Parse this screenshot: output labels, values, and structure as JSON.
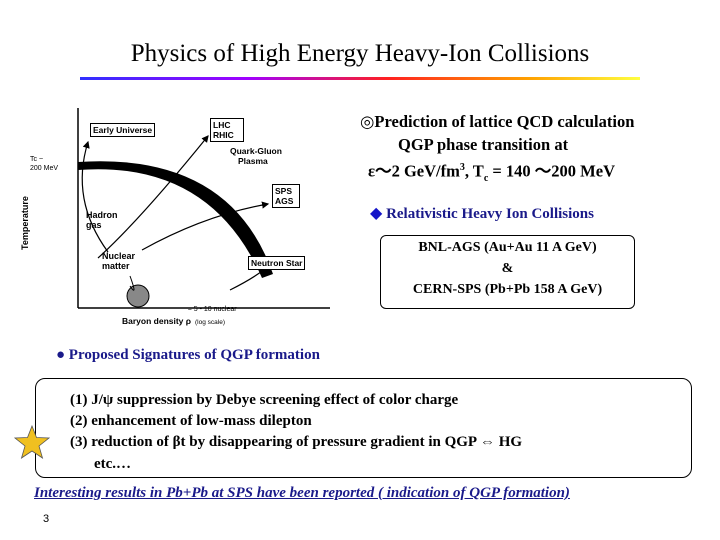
{
  "title": "Physics of High Energy Heavy-Ion Collisions",
  "diagram": {
    "early_universe": "Early Universe",
    "lhc": "LHC",
    "rhic": "RHIC",
    "qgp_line1": "Quark-Gluon",
    "qgp_line2": "Plasma",
    "tc_line1": "Tc ~",
    "tc_line2": "200 MeV",
    "sps": "SPS",
    "ags": "AGS",
    "hadron_line1": "Hadron",
    "hadron_line2": "gas",
    "temperature": "Temperature",
    "nuclear_line1": "Nuclear",
    "nuclear_line2": "matter",
    "neutron_star": "Neutron Star",
    "nuclear_density": "≈ 5 - 10 nuclear",
    "baryon_density": "Baryon density ρ",
    "log_scale": "(log scale)"
  },
  "prediction": {
    "line1": "◎Prediction of lattice QCD calculation",
    "line2": "QGP phase transition at",
    "line3_eps": "ε",
    "line3_value": "～2 GeV/fm",
    "line3_exp": "3",
    "line3_tc": ", T",
    "line3_tc_sub": "c",
    "line3_tc_val": " = 140 ～200 MeV"
  },
  "relativistic": {
    "bullet": "◆",
    "text": "Relativistic Heavy Ion Collisions"
  },
  "experiments": {
    "line1": "BNL-AGS (Au+Au 11 A GeV)",
    "line2": "&",
    "line3": "CERN-SPS (Pb+Pb 158 A GeV)"
  },
  "signatures": {
    "heading": "● Proposed Signatures of QGP formation",
    "item1": "(1) J/ψ suppression by Debye screening effect of color charge",
    "item2": "(2) enhancement of low-mass dilepton",
    "item3": "(3) reduction of βt  by disappearing of pressure gradient in QGP ⇔ HG",
    "item4": "etc.…",
    "star_color": "#f0c020"
  },
  "footer_note": "Interesting results in Pb+Pb at SPS have been reported ( indication of QGP formation)",
  "page_number": "3",
  "colors": {
    "accent_blue": "#1a1a8a"
  }
}
